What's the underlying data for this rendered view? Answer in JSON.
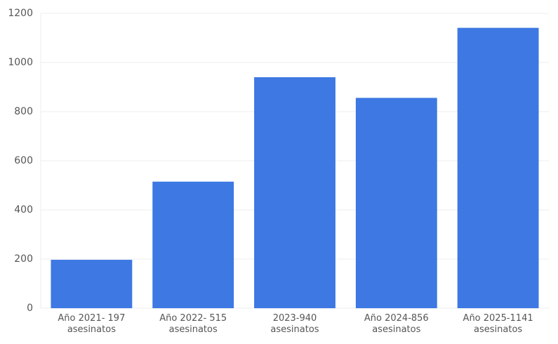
{
  "chart_data": {
    "type": "bar",
    "categories": [
      "Año 2021- 197\nasesinatos",
      "Año 2022- 515\nasesinatos",
      "2023-940\nasesinatos",
      "Año 2024-856\nasesinatos",
      "Año 2025-1141\nasesinatos"
    ],
    "values": [
      197,
      515,
      940,
      856,
      1141
    ],
    "color": "#3d78e3",
    "ylim": [
      0,
      1200
    ],
    "yticks": [
      0,
      200,
      400,
      600,
      800,
      1000,
      1200
    ],
    "grid": true
  }
}
